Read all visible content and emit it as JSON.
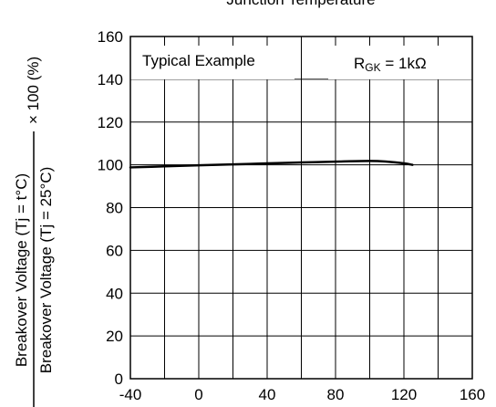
{
  "chart_data": {
    "type": "line",
    "title": "Junction Temperature",
    "ylabel_numerator": "Breakover Voltage (Tj = t°C)",
    "ylabel_denominator": "Breakover Voltage (Tj = 25°C)",
    "ylabel_suffix": "× 100 (%)",
    "xlabel": "",
    "xlim": [
      -40,
      160
    ],
    "ylim": [
      0,
      160
    ],
    "x_ticks": [
      -40,
      0,
      40,
      80,
      120,
      160
    ],
    "y_ticks": [
      0,
      20,
      40,
      60,
      80,
      100,
      120,
      140,
      160
    ],
    "grid": true,
    "grid_x_step": 20,
    "grid_y_step": 20,
    "annotations": {
      "left": "Typical Example",
      "right_main": "R",
      "right_sub": "GK",
      "right_rest": " = 1kΩ"
    },
    "series": [
      {
        "x": [
          -40,
          -20,
          0,
          20,
          40,
          60,
          80,
          100,
          110,
          120,
          125
        ],
        "y": [
          98.8,
          99.3,
          99.8,
          100.2,
          100.7,
          101.1,
          101.5,
          101.8,
          101.5,
          100.7,
          100.0
        ]
      }
    ]
  }
}
